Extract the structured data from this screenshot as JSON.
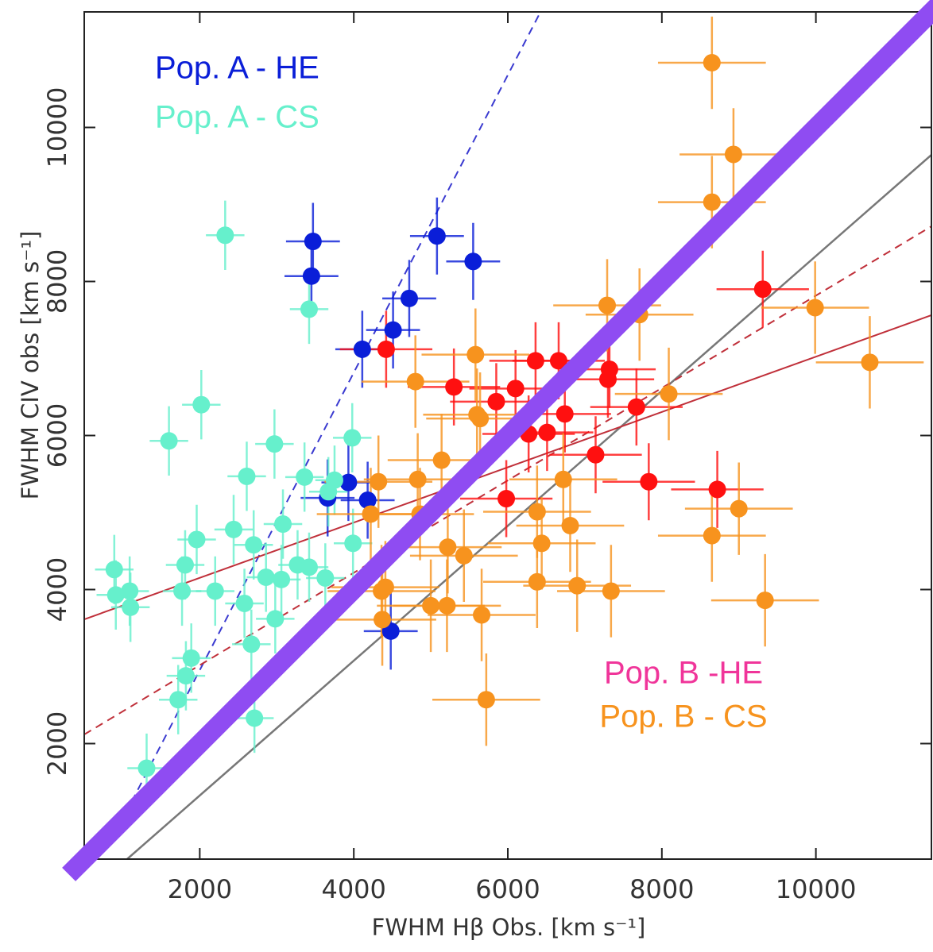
{
  "chart_data": {
    "type": "scatter",
    "x_label": "FWHM Hβ Obs. [km s⁻¹]",
    "y_label": "FWHM CIV obs [km s⁻¹]",
    "xlim": [
      500,
      11500
    ],
    "ylim": [
      500,
      11500
    ],
    "xticks": [
      2000,
      4000,
      6000,
      8000,
      10000
    ],
    "yticks": [
      2000,
      4000,
      6000,
      8000,
      10000
    ],
    "series": [
      {
        "name": "Pop. A - HE",
        "color": "#0a1ed8",
        "xerr": 350,
        "yerr": 500,
        "x": [
          3470,
          3450,
          5080,
          5550,
          4720,
          4510,
          4110,
          3930,
          3660,
          4180,
          4480
        ],
        "values": [
          8520,
          8070,
          8590,
          8260,
          7780,
          7370,
          7120,
          5390,
          5190,
          5160,
          3460
        ]
      },
      {
        "name": "Pop. A - CS",
        "color": "#66f0cc",
        "xerr": 250,
        "yerr": 450,
        "x": [
          2330,
          3420,
          2020,
          1600,
          2970,
          3980,
          2610,
          3360,
          3750,
          3670,
          1960,
          2440,
          3080,
          2700,
          3990,
          1810,
          890,
          3270,
          3420,
          3630,
          2860,
          3060,
          910,
          1090,
          1770,
          2200,
          1100,
          2580,
          2980,
          1890,
          1820,
          1720,
          2670,
          2710,
          1310
        ],
        "values": [
          8600,
          7640,
          6400,
          5930,
          5890,
          5970,
          5470,
          5460,
          5420,
          5270,
          4650,
          4780,
          4850,
          4580,
          4600,
          4320,
          4260,
          4320,
          4290,
          4150,
          4160,
          4130,
          3930,
          3980,
          3980,
          3980,
          3770,
          3820,
          3620,
          3110,
          2880,
          2570,
          3290,
          2330,
          1680
        ]
      },
      {
        "name": "Pop. B -HE",
        "color": "#ff1010",
        "label_color": "#f0359a",
        "xerr": 600,
        "yerr": 500,
        "x": [
          4420,
          5300,
          5850,
          6100,
          6360,
          6660,
          7320,
          7300,
          7670,
          6740,
          6510,
          6270,
          7140,
          5980,
          7830,
          8720,
          9310
        ],
        "values": [
          7120,
          6630,
          6440,
          6610,
          6970,
          6970,
          6860,
          6730,
          6370,
          6280,
          6040,
          6020,
          5750,
          5180,
          5400,
          5300,
          7900
        ]
      },
      {
        "name": "Pop. B - CS",
        "color": "#f7931e",
        "xerr": 700,
        "yerr": 600,
        "x": [
          8650,
          8930,
          8650,
          7290,
          7710,
          9990,
          10700,
          5580,
          4800,
          5600,
          5640,
          8090,
          5140,
          4320,
          4830,
          4220,
          4860,
          6720,
          6380,
          6440,
          6810,
          9000,
          8650,
          5220,
          5430,
          4360,
          4410,
          6380,
          6900,
          7340,
          5000,
          5210,
          5660,
          4370,
          5720,
          9340
        ],
        "values": [
          10840,
          9650,
          9030,
          7690,
          7570,
          7660,
          6950,
          7050,
          6700,
          6270,
          6220,
          6540,
          5680,
          5400,
          5430,
          4980,
          4980,
          5430,
          5010,
          4600,
          4830,
          5050,
          4700,
          4550,
          4440,
          3980,
          4030,
          4100,
          4050,
          3980,
          3790,
          3790,
          3670,
          3610,
          2570,
          3860
        ]
      }
    ],
    "lines": [
      {
        "color": "#3a3ad0",
        "style": "dashed",
        "width": 2,
        "x": [
          954,
          6424
        ],
        "values": [
          933,
          11500
        ]
      },
      {
        "color": "#777777",
        "style": "solid",
        "width": 2.5,
        "x": [
          1057,
          11500
        ],
        "values": [
          500,
          9644
        ]
      },
      {
        "color": "#c0303a",
        "style": "solid",
        "width": 2,
        "x": [
          500,
          11500
        ],
        "values": [
          3613,
          7562
        ]
      },
      {
        "color": "#c0303a",
        "style": "dashed",
        "width": 2,
        "x": [
          500,
          11500
        ],
        "values": [
          2118,
          8716
        ]
      },
      {
        "color": "#8f4cf2",
        "style": "solid",
        "width": 24,
        "x": [
          300,
          11700
        ],
        "values": [
          300,
          11700
        ]
      }
    ]
  }
}
